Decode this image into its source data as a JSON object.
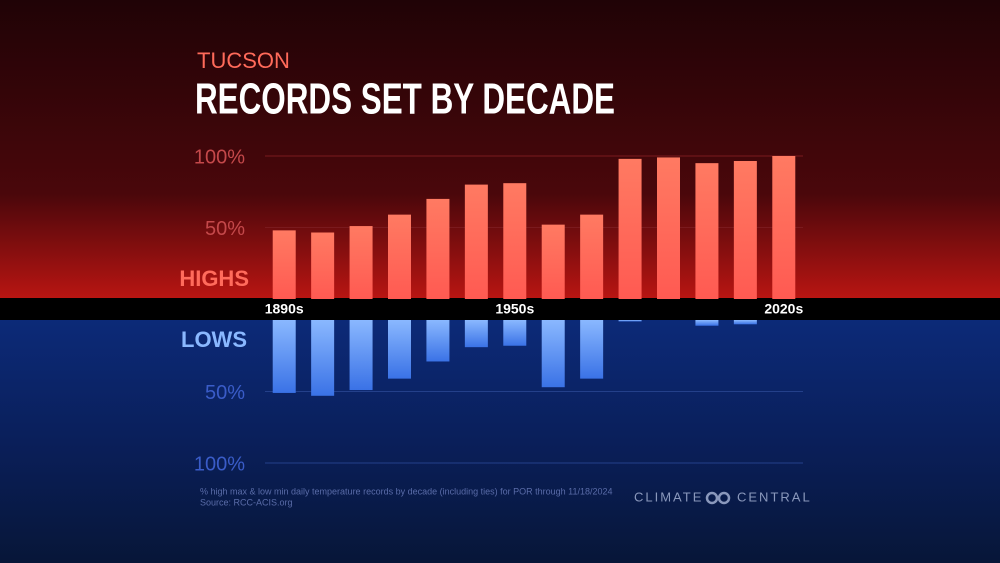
{
  "chart_data": {
    "type": "diverging_bar",
    "subtitle": "TUCSON",
    "title": "RECORDS SET BY DECADE",
    "categories": [
      "1890s",
      null,
      null,
      null,
      null,
      null,
      "1950s",
      null,
      null,
      null,
      null,
      null,
      null,
      "2020s"
    ],
    "series": [
      {
        "name": "HIGHS",
        "color": "#ff6b5c",
        "values": [
          48,
          46.5,
          51,
          59,
          70,
          80,
          81,
          52,
          59,
          98,
          99,
          95,
          96.5,
          100
        ]
      },
      {
        "name": "LOWS",
        "color": "#4f8ef2",
        "values": [
          51,
          53,
          49,
          41,
          29,
          19,
          18,
          47,
          41,
          1,
          0,
          4,
          3,
          0
        ]
      }
    ],
    "ylim": [
      0,
      100
    ],
    "yticks": [
      {
        "value": 50,
        "label": "50%"
      },
      {
        "value": 100,
        "label": "100%"
      }
    ],
    "grid": true,
    "note": "% high max & low min daily temperature records by decade (including ties) for POR through 11/18/2024",
    "source": "Source: RCC-ACIS.org",
    "brand": [
      "CLIMATE",
      "CENTRAL"
    ]
  }
}
